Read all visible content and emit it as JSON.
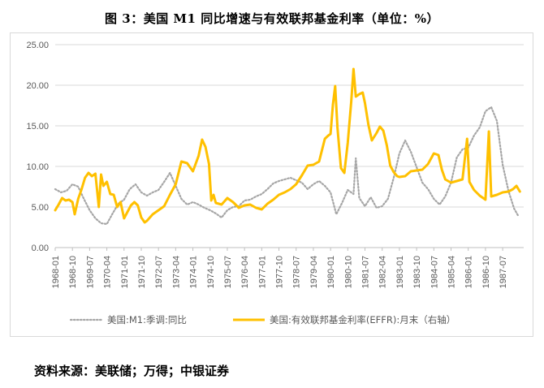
{
  "title": "图 3：美国 M1 同比增速与有效联邦基金利率（单位：%）",
  "source": "资料来源：美联储；万得；中银证券",
  "colors": {
    "m1": "#a6a6a6",
    "effr": "#ffc000",
    "grid": "#d9d9d9",
    "axis": "#bfbfbf",
    "tick": "#595959"
  },
  "chart_data": {
    "type": "line",
    "title": "图 3：美国 M1 同比增速与有效联邦基金利率（单位：%）",
    "xlabel": "",
    "ylabel": "",
    "ylim": [
      0,
      25
    ],
    "yticks": [
      "0.00",
      "5.00",
      "10.00",
      "15.00",
      "20.00",
      "25.00"
    ],
    "grid": true,
    "legend_position": "bottom",
    "x_start": "1968-01",
    "x_end": "1988-06",
    "categories": [
      "1968-01",
      "1968-10",
      "1969-07",
      "1970-04",
      "1971-01",
      "1971-10",
      "1972-07",
      "1973-04",
      "1974-01",
      "1974-10",
      "1975-07",
      "1976-04",
      "1977-01",
      "1977-10",
      "1978-07",
      "1979-04",
      "1980-01",
      "1980-10",
      "1981-07",
      "1982-04",
      "1983-01",
      "1983-10",
      "1984-07",
      "1985-04",
      "1986-01",
      "1986-10",
      "1987-07"
    ],
    "series": [
      {
        "name": "美国:M1:季调:同比",
        "style": "dotted",
        "points": [
          [
            1968.0,
            7.2
          ],
          [
            1968.25,
            6.8
          ],
          [
            1968.5,
            7.0
          ],
          [
            1968.75,
            7.8
          ],
          [
            1969.0,
            7.5
          ],
          [
            1969.25,
            6.0
          ],
          [
            1969.5,
            4.6
          ],
          [
            1969.75,
            3.6
          ],
          [
            1970.0,
            3.0
          ],
          [
            1970.25,
            2.9
          ],
          [
            1970.5,
            4.2
          ],
          [
            1970.75,
            5.4
          ],
          [
            1971.0,
            5.9
          ],
          [
            1971.25,
            7.2
          ],
          [
            1971.5,
            7.8
          ],
          [
            1971.75,
            6.8
          ],
          [
            1972.0,
            6.4
          ],
          [
            1972.25,
            6.8
          ],
          [
            1972.5,
            7.1
          ],
          [
            1972.75,
            8.1
          ],
          [
            1973.0,
            9.2
          ],
          [
            1973.25,
            7.6
          ],
          [
            1973.5,
            6.0
          ],
          [
            1973.75,
            5.3
          ],
          [
            1974.0,
            5.6
          ],
          [
            1974.25,
            5.3
          ],
          [
            1974.5,
            4.9
          ],
          [
            1974.75,
            4.6
          ],
          [
            1975.0,
            4.2
          ],
          [
            1975.25,
            3.7
          ],
          [
            1975.5,
            4.6
          ],
          [
            1975.75,
            5.0
          ],
          [
            1976.0,
            5.1
          ],
          [
            1976.25,
            5.8
          ],
          [
            1976.5,
            5.9
          ],
          [
            1976.75,
            6.3
          ],
          [
            1977.0,
            6.6
          ],
          [
            1977.25,
            7.2
          ],
          [
            1977.5,
            7.9
          ],
          [
            1977.75,
            8.2
          ],
          [
            1978.0,
            8.4
          ],
          [
            1978.25,
            8.6
          ],
          [
            1978.5,
            8.3
          ],
          [
            1978.75,
            8.0
          ],
          [
            1979.0,
            7.2
          ],
          [
            1979.25,
            7.8
          ],
          [
            1979.5,
            8.2
          ],
          [
            1979.75,
            7.6
          ],
          [
            1980.0,
            6.8
          ],
          [
            1980.25,
            4.1
          ],
          [
            1980.5,
            5.5
          ],
          [
            1980.75,
            7.1
          ],
          [
            1981.0,
            6.6
          ],
          [
            1981.1,
            11.0
          ],
          [
            1981.25,
            6.1
          ],
          [
            1981.5,
            5.1
          ],
          [
            1981.75,
            6.2
          ],
          [
            1982.0,
            4.9
          ],
          [
            1982.25,
            5.1
          ],
          [
            1982.5,
            6.0
          ],
          [
            1982.75,
            8.6
          ],
          [
            1983.0,
            11.6
          ],
          [
            1983.25,
            13.2
          ],
          [
            1983.5,
            11.8
          ],
          [
            1983.75,
            9.9
          ],
          [
            1984.0,
            8.0
          ],
          [
            1984.25,
            7.2
          ],
          [
            1984.5,
            6.0
          ],
          [
            1984.75,
            5.3
          ],
          [
            1985.0,
            6.3
          ],
          [
            1985.25,
            8.0
          ],
          [
            1985.5,
            11.1
          ],
          [
            1985.75,
            12.1
          ],
          [
            1986.0,
            12.3
          ],
          [
            1986.25,
            13.8
          ],
          [
            1986.5,
            14.8
          ],
          [
            1986.75,
            16.8
          ],
          [
            1987.0,
            17.3
          ],
          [
            1987.25,
            15.6
          ],
          [
            1987.5,
            10.2
          ],
          [
            1987.75,
            7.0
          ],
          [
            1988.0,
            4.8
          ],
          [
            1988.2,
            3.8
          ]
        ]
      },
      {
        "name": "美国:有效联邦基金利率(EFFR):月末（右轴）",
        "style": "solid",
        "points": [
          [
            1968.0,
            4.6
          ],
          [
            1968.15,
            5.3
          ],
          [
            1968.3,
            6.1
          ],
          [
            1968.45,
            5.8
          ],
          [
            1968.6,
            5.9
          ],
          [
            1968.75,
            5.6
          ],
          [
            1968.85,
            4.1
          ],
          [
            1969.0,
            6.0
          ],
          [
            1969.15,
            7.2
          ],
          [
            1969.3,
            8.6
          ],
          [
            1969.45,
            9.2
          ],
          [
            1969.6,
            8.8
          ],
          [
            1969.75,
            9.1
          ],
          [
            1969.9,
            5.0
          ],
          [
            1970.0,
            9.0
          ],
          [
            1970.1,
            7.6
          ],
          [
            1970.25,
            8.1
          ],
          [
            1970.4,
            6.6
          ],
          [
            1970.55,
            6.5
          ],
          [
            1970.7,
            5.0
          ],
          [
            1970.85,
            5.6
          ],
          [
            1971.0,
            3.6
          ],
          [
            1971.15,
            4.4
          ],
          [
            1971.3,
            5.2
          ],
          [
            1971.45,
            5.6
          ],
          [
            1971.6,
            5.2
          ],
          [
            1971.75,
            3.7
          ],
          [
            1971.9,
            3.1
          ],
          [
            1972.0,
            3.3
          ],
          [
            1972.25,
            4.1
          ],
          [
            1972.5,
            4.6
          ],
          [
            1972.75,
            5.1
          ],
          [
            1973.0,
            6.5
          ],
          [
            1973.25,
            7.8
          ],
          [
            1973.5,
            10.6
          ],
          [
            1973.75,
            10.4
          ],
          [
            1974.0,
            9.4
          ],
          [
            1974.25,
            11.3
          ],
          [
            1974.4,
            13.3
          ],
          [
            1974.55,
            12.4
          ],
          [
            1974.7,
            10.3
          ],
          [
            1974.8,
            5.8
          ],
          [
            1974.9,
            6.5
          ],
          [
            1975.0,
            5.5
          ],
          [
            1975.25,
            5.3
          ],
          [
            1975.5,
            6.1
          ],
          [
            1975.75,
            5.6
          ],
          [
            1976.0,
            4.9
          ],
          [
            1976.25,
            5.2
          ],
          [
            1976.5,
            5.3
          ],
          [
            1976.75,
            4.9
          ],
          [
            1977.0,
            4.7
          ],
          [
            1977.25,
            5.4
          ],
          [
            1977.5,
            5.9
          ],
          [
            1977.75,
            6.5
          ],
          [
            1978.0,
            6.8
          ],
          [
            1978.25,
            7.2
          ],
          [
            1978.5,
            7.8
          ],
          [
            1978.75,
            8.9
          ],
          [
            1979.0,
            10.1
          ],
          [
            1979.25,
            10.2
          ],
          [
            1979.5,
            10.6
          ],
          [
            1979.75,
            13.4
          ],
          [
            1979.9,
            13.8
          ],
          [
            1980.0,
            14.0
          ],
          [
            1980.1,
            17.6
          ],
          [
            1980.2,
            19.9
          ],
          [
            1980.3,
            14.8
          ],
          [
            1980.45,
            9.8
          ],
          [
            1980.6,
            9.2
          ],
          [
            1980.75,
            12.9
          ],
          [
            1980.9,
            18.0
          ],
          [
            1981.0,
            22.0
          ],
          [
            1981.1,
            18.6
          ],
          [
            1981.25,
            18.9
          ],
          [
            1981.4,
            19.1
          ],
          [
            1981.5,
            17.8
          ],
          [
            1981.65,
            15.1
          ],
          [
            1981.8,
            13.2
          ],
          [
            1982.0,
            14.1
          ],
          [
            1982.15,
            14.9
          ],
          [
            1982.3,
            14.4
          ],
          [
            1982.45,
            12.6
          ],
          [
            1982.6,
            10.1
          ],
          [
            1982.75,
            9.3
          ],
          [
            1982.9,
            8.8
          ],
          [
            1983.0,
            8.7
          ],
          [
            1983.25,
            8.8
          ],
          [
            1983.5,
            9.4
          ],
          [
            1983.75,
            9.5
          ],
          [
            1984.0,
            9.6
          ],
          [
            1984.25,
            10.3
          ],
          [
            1984.5,
            11.6
          ],
          [
            1984.7,
            11.4
          ],
          [
            1984.85,
            9.6
          ],
          [
            1985.0,
            8.4
          ],
          [
            1985.25,
            8.0
          ],
          [
            1985.5,
            8.2
          ],
          [
            1985.75,
            8.4
          ],
          [
            1985.95,
            13.4
          ],
          [
            1986.05,
            8.1
          ],
          [
            1986.25,
            7.1
          ],
          [
            1986.5,
            6.4
          ],
          [
            1986.75,
            5.9
          ],
          [
            1986.9,
            14.3
          ],
          [
            1987.0,
            6.3
          ],
          [
            1987.25,
            6.5
          ],
          [
            1987.5,
            6.8
          ],
          [
            1987.75,
            6.9
          ],
          [
            1987.95,
            7.2
          ],
          [
            1988.1,
            7.6
          ],
          [
            1988.25,
            6.9
          ]
        ]
      }
    ]
  }
}
